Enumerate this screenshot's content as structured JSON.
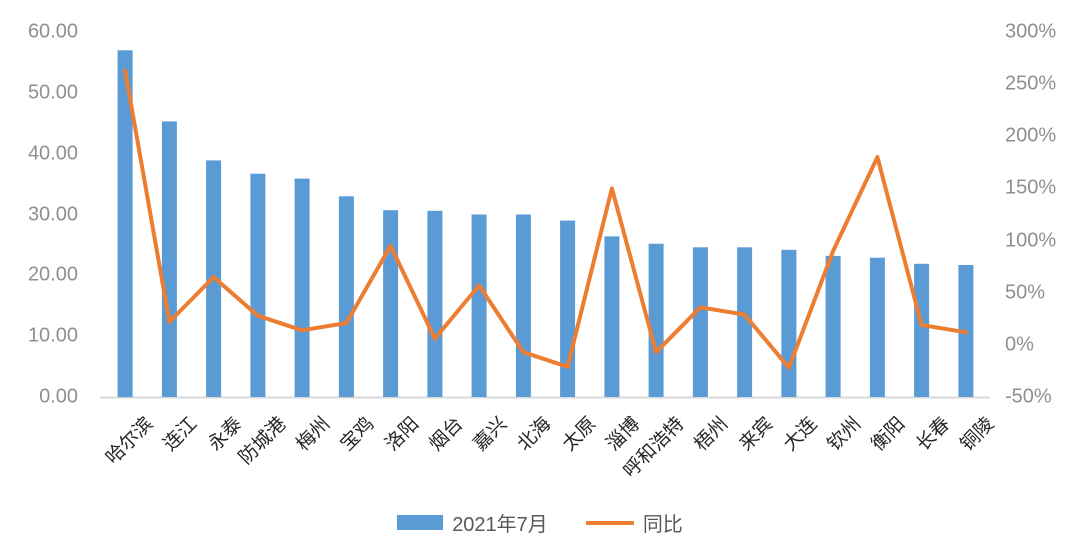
{
  "chart": {
    "colors": {
      "bar": "#5B9BD5",
      "line": "#ED7D31",
      "y_axis_text": "#8f8f8f",
      "x_axis_text": "#262626",
      "legend_text": "#595959",
      "axis_line": "#D9D9D9",
      "background": "#FFFFFF"
    }
  },
  "chart_data": {
    "type": "combo-bar-line",
    "title": "",
    "grid": false,
    "categories": [
      "哈尔滨",
      "连江",
      "永泰",
      "防城港",
      "梅州",
      "宝鸡",
      "洛阳",
      "烟台",
      "嘉兴",
      "北海",
      "太原",
      "淄博",
      "呼和浩特",
      "梧州",
      "来宾",
      "大连",
      "钦州",
      "衡阳",
      "长春",
      "铜陵"
    ],
    "series": [
      {
        "name": "2021年7月",
        "type": "bar",
        "axis": "left",
        "color": "#5B9BD5",
        "values": [
          57.0,
          45.3,
          38.9,
          36.7,
          35.9,
          33.0,
          30.7,
          30.6,
          30.0,
          30.0,
          29.0,
          26.4,
          25.2,
          24.6,
          24.6,
          24.2,
          23.2,
          22.9,
          21.9,
          21.7
        ]
      },
      {
        "name": "同比",
        "type": "line",
        "axis": "right",
        "color": "#ED7D31",
        "values_percent": [
          263,
          22,
          65,
          28,
          14,
          21,
          95,
          6,
          57,
          -7,
          -21,
          150,
          -7,
          36,
          29,
          -22,
          90,
          180,
          19,
          12
        ]
      }
    ],
    "left_axis": {
      "min": 0,
      "max": 60,
      "step": 10,
      "tick_labels": [
        "0.00",
        "10.00",
        "20.00",
        "30.00",
        "40.00",
        "50.00",
        "60.00"
      ]
    },
    "right_axis": {
      "min": -50,
      "max": 300,
      "step": 50,
      "tick_labels": [
        "-50%",
        "0%",
        "50%",
        "100%",
        "150%",
        "200%",
        "250%",
        "300%"
      ]
    },
    "legend": {
      "position": "bottom-center",
      "items": [
        {
          "label": "2021年7月",
          "swatch": "bar"
        },
        {
          "label": "同比",
          "swatch": "line"
        }
      ]
    }
  }
}
